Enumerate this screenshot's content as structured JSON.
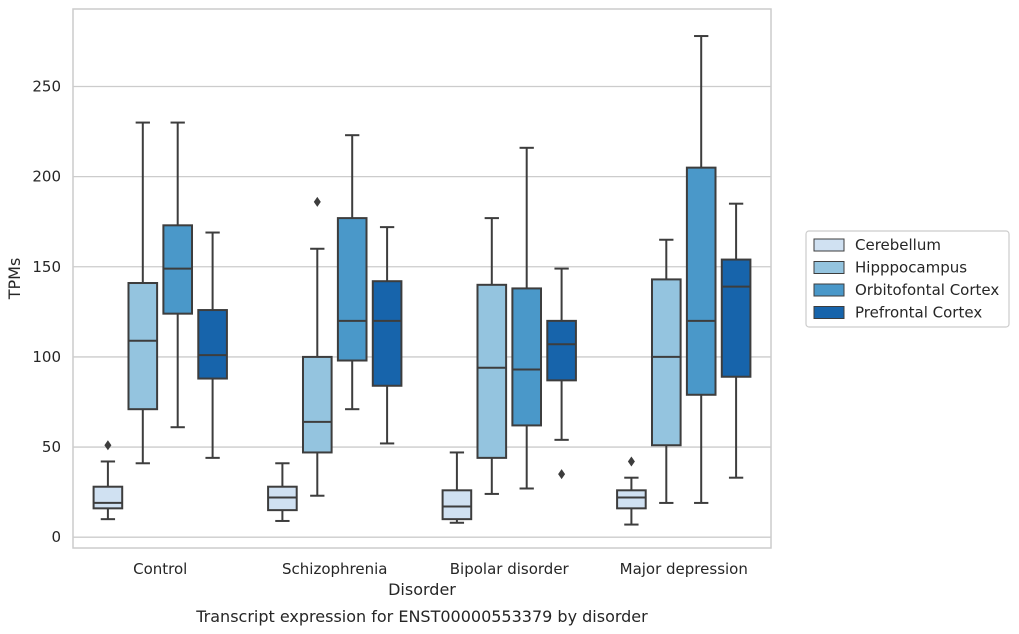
{
  "chart_data": {
    "type": "box",
    "title": "",
    "caption": "Transcript expression for ENST00000553379 by disorder",
    "xlabel": "Disorder",
    "ylabel": "TPMs",
    "ylim": [
      -6,
      293
    ],
    "yticks": [
      0,
      50,
      100,
      150,
      200,
      250
    ],
    "grid": "horizontal",
    "legend_position": "right",
    "categories": [
      "Control",
      "Schizophrenia",
      "Bipolar disorder",
      "Major depression"
    ],
    "series": [
      {
        "name": "Cerebellum",
        "color": "#d0e1f2",
        "boxes": [
          {
            "whisker_low": 10,
            "q1": 16,
            "median": 19,
            "q3": 28,
            "whisker_high": 42,
            "outliers": [
              51
            ]
          },
          {
            "whisker_low": 9,
            "q1": 15,
            "median": 22,
            "q3": 28,
            "whisker_high": 41,
            "outliers": []
          },
          {
            "whisker_low": 8,
            "q1": 10,
            "median": 17,
            "q3": 26,
            "whisker_high": 47,
            "outliers": []
          },
          {
            "whisker_low": 7,
            "q1": 16,
            "median": 22,
            "q3": 26,
            "whisker_high": 33,
            "outliers": [
              42
            ]
          }
        ]
      },
      {
        "name": "Hipppocampus",
        "color": "#94c4df",
        "boxes": [
          {
            "whisker_low": 41,
            "q1": 71,
            "median": 109,
            "q3": 141,
            "whisker_high": 230,
            "outliers": []
          },
          {
            "whisker_low": 23,
            "q1": 47,
            "median": 64,
            "q3": 100,
            "whisker_high": 160,
            "outliers": [
              186
            ]
          },
          {
            "whisker_low": 24,
            "q1": 44,
            "median": 94,
            "q3": 140,
            "whisker_high": 177,
            "outliers": []
          },
          {
            "whisker_low": 19,
            "q1": 51,
            "median": 100,
            "q3": 143,
            "whisker_high": 165,
            "outliers": []
          }
        ]
      },
      {
        "name": "Orbitofontal Cortex",
        "color": "#4a98c9",
        "boxes": [
          {
            "whisker_low": 61,
            "q1": 124,
            "median": 149,
            "q3": 173,
            "whisker_high": 230,
            "outliers": []
          },
          {
            "whisker_low": 71,
            "q1": 98,
            "median": 120,
            "q3": 177,
            "whisker_high": 223,
            "outliers": []
          },
          {
            "whisker_low": 27,
            "q1": 62,
            "median": 93,
            "q3": 138,
            "whisker_high": 216,
            "outliers": []
          },
          {
            "whisker_low": 19,
            "q1": 79,
            "median": 120,
            "q3": 205,
            "whisker_high": 278,
            "outliers": []
          }
        ]
      },
      {
        "name": "Prefrontal Cortex",
        "color": "#1764ab",
        "boxes": [
          {
            "whisker_low": 44,
            "q1": 88,
            "median": 101,
            "q3": 126,
            "whisker_high": 169,
            "outliers": []
          },
          {
            "whisker_low": 52,
            "q1": 84,
            "median": 120,
            "q3": 142,
            "whisker_high": 172,
            "outliers": []
          },
          {
            "whisker_low": 54,
            "q1": 87,
            "median": 107,
            "q3": 120,
            "whisker_high": 149,
            "outliers": [
              35
            ]
          },
          {
            "whisker_low": 33,
            "q1": 89,
            "median": 139,
            "q3": 154,
            "whisker_high": 185,
            "outliers": []
          }
        ]
      }
    ]
  }
}
